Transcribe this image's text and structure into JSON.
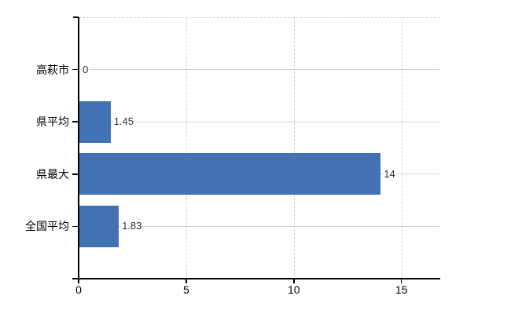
{
  "chart_data": {
    "type": "bar",
    "orientation": "horizontal",
    "categories": [
      "高萩市",
      "県平均",
      "県最大",
      "全国平均"
    ],
    "values": [
      0,
      1.45,
      14,
      1.83
    ],
    "value_labels": [
      "0",
      "1.45",
      "14",
      "1.83"
    ],
    "xticks": [
      0,
      5,
      10,
      15
    ],
    "xtick_labels": [
      "0",
      "5",
      "10",
      "15"
    ],
    "xlim": [
      0,
      16.8
    ],
    "grid": "horizontal solid per category, vertical dashed per x tick, dashed top border",
    "legend_position": "none",
    "colors": {
      "bar": "#4272b2",
      "axis": "#000000",
      "h_gridline": "#ccd5cb",
      "v_gridline": "#d4d4d4",
      "value_label_text": "#303030",
      "tick_label_text": "#000000",
      "background": "#ffffff"
    }
  }
}
